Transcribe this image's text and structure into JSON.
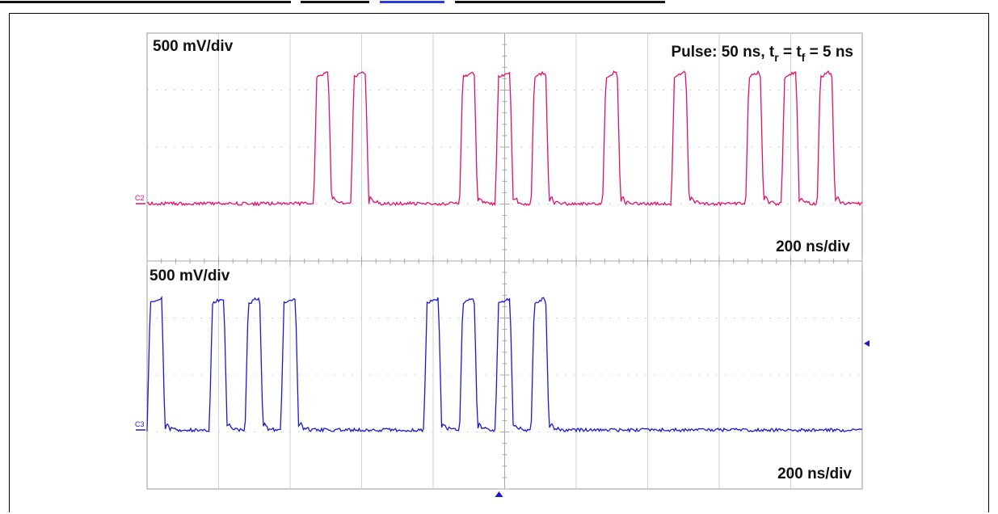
{
  "header_fragment": {
    "visible": true,
    "color_text": "#111111",
    "color_link": "#2a3ae0"
  },
  "chart_data": {
    "type": "line",
    "display": "oscilloscope",
    "grid": true,
    "channels": [
      {
        "id": "C2",
        "color": "#e0106e",
        "scale_label": "500 mV/div",
        "time_label": "200 ns/div",
        "annotation": {
          "prefix": "Pulse: 50 ns, t",
          "sub1": "r",
          "mid": " = t",
          "sub2": "f",
          "suffix": " = 5 ns"
        },
        "pulse_starts_div": [
          2.33,
          2.85,
          4.37,
          4.87,
          5.37,
          6.37,
          7.33,
          8.37,
          8.87,
          9.37
        ],
        "pulse_width_div": 0.25,
        "high_div": 2.3
      },
      {
        "id": "C3",
        "color": "#1a1acc",
        "scale_label": "500 mV/div",
        "time_label": "200 ns/div",
        "pulse_starts_div": [
          0.0,
          0.87,
          1.37,
          1.87,
          3.87,
          4.37,
          4.87,
          5.37
        ],
        "pulse_width_div": 0.25,
        "high_div": 2.3
      }
    ]
  }
}
